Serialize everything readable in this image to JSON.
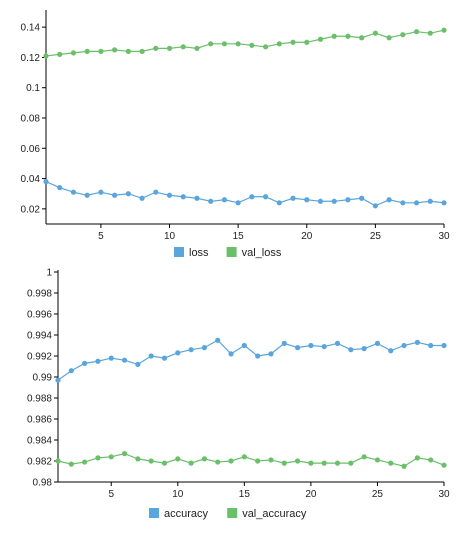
{
  "colors": {
    "loss": "#5aa5dc",
    "val": "#6abf69",
    "axis": "#000000"
  },
  "chart_data": [
    {
      "type": "line",
      "x": [
        1,
        2,
        3,
        4,
        5,
        6,
        7,
        8,
        9,
        10,
        11,
        12,
        13,
        14,
        15,
        16,
        17,
        18,
        19,
        20,
        21,
        22,
        23,
        24,
        25,
        26,
        27,
        28,
        29,
        30
      ],
      "xlim": [
        1,
        30
      ],
      "xticks": [
        5,
        10,
        15,
        20,
        25,
        30
      ],
      "ylim": [
        0.01,
        0.15
      ],
      "yticks": [
        0.02,
        0.04,
        0.06,
        0.08,
        0.1,
        0.12,
        0.14
      ],
      "ytick_labels": [
        "0.02",
        "0.04",
        "0.06",
        "0.08",
        "0.1",
        "0.12",
        "0.14"
      ],
      "series": [
        {
          "name": "loss",
          "color": "#5aa5dc",
          "values": [
            0.038,
            0.034,
            0.031,
            0.029,
            0.031,
            0.029,
            0.03,
            0.027,
            0.031,
            0.029,
            0.028,
            0.027,
            0.025,
            0.026,
            0.024,
            0.028,
            0.028,
            0.024,
            0.027,
            0.026,
            0.025,
            0.025,
            0.026,
            0.027,
            0.022,
            0.026,
            0.024,
            0.024,
            0.025,
            0.024
          ]
        },
        {
          "name": "val_loss",
          "color": "#6abf69",
          "values": [
            0.121,
            0.122,
            0.123,
            0.124,
            0.124,
            0.125,
            0.124,
            0.124,
            0.126,
            0.126,
            0.127,
            0.126,
            0.129,
            0.129,
            0.129,
            0.128,
            0.127,
            0.129,
            0.13,
            0.13,
            0.132,
            0.134,
            0.134,
            0.133,
            0.136,
            0.133,
            0.135,
            0.137,
            0.136,
            0.138
          ]
        }
      ],
      "legend": "bottom"
    },
    {
      "type": "line",
      "x": [
        1,
        2,
        3,
        4,
        5,
        6,
        7,
        8,
        9,
        10,
        11,
        12,
        13,
        14,
        15,
        16,
        17,
        18,
        19,
        20,
        21,
        22,
        23,
        24,
        25,
        26,
        27,
        28,
        29,
        30
      ],
      "xlim": [
        1,
        30
      ],
      "xticks": [
        5,
        10,
        15,
        20,
        25,
        30
      ],
      "ylim": [
        0.98,
        1.0
      ],
      "yticks": [
        0.98,
        0.982,
        0.984,
        0.986,
        0.988,
        0.99,
        0.992,
        0.994,
        0.996,
        0.998,
        1.0
      ],
      "ytick_labels": [
        "0.98",
        "0.982",
        "0.984",
        "0.986",
        "0.988",
        "0.99",
        "0.992",
        "0.994",
        "0.996",
        "0.998",
        "1"
      ],
      "series": [
        {
          "name": "accuracy",
          "color": "#5aa5dc",
          "values": [
            0.9897,
            0.9906,
            0.9913,
            0.9915,
            0.9918,
            0.9916,
            0.9912,
            0.992,
            0.9918,
            0.9923,
            0.9926,
            0.9928,
            0.9935,
            0.9922,
            0.993,
            0.992,
            0.9922,
            0.9932,
            0.9928,
            0.993,
            0.9929,
            0.9932,
            0.9926,
            0.9927,
            0.9932,
            0.9925,
            0.993,
            0.9933,
            0.993,
            0.993
          ]
        },
        {
          "name": "val_accuracy",
          "color": "#6abf69",
          "values": [
            0.982,
            0.9817,
            0.9819,
            0.9823,
            0.9824,
            0.9827,
            0.9822,
            0.982,
            0.9818,
            0.9822,
            0.9818,
            0.9822,
            0.9819,
            0.982,
            0.9824,
            0.982,
            0.9821,
            0.9818,
            0.982,
            0.9818,
            0.9818,
            0.9818,
            0.9818,
            0.9824,
            0.9821,
            0.9818,
            0.9815,
            0.9823,
            0.9821,
            0.9816
          ]
        }
      ],
      "legend": "bottom"
    }
  ]
}
